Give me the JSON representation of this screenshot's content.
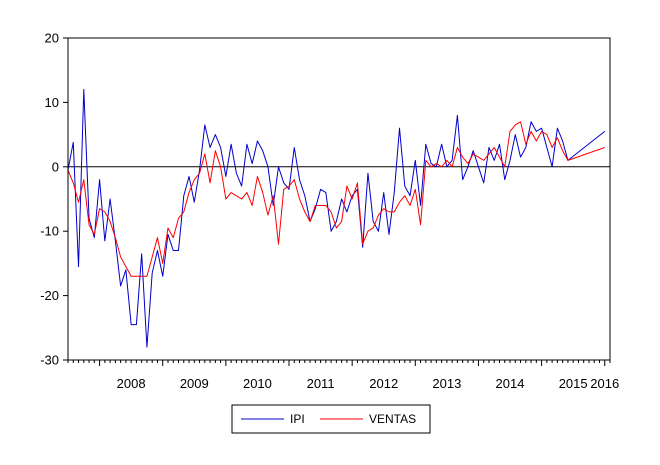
{
  "chart_data": {
    "type": "line",
    "title": "",
    "xlabel": "",
    "ylabel": "",
    "ylim": [
      -30,
      20
    ],
    "yticks": [
      -30,
      -20,
      -10,
      0,
      10,
      20
    ],
    "x_start": "2007-07",
    "x_end": "2016-02",
    "xticks": [
      "2008",
      "2009",
      "2010",
      "2011",
      "2012",
      "2013",
      "2014",
      "2015",
      "2016"
    ],
    "reference_line": 0,
    "grid": false,
    "legend": {
      "position": "bottom-center",
      "entries": [
        "IPI",
        "VENTAS"
      ]
    },
    "series": [
      {
        "name": "IPI",
        "color": "#0000cc",
        "values": [
          {
            "x": "2007-07",
            "y": -0.5
          },
          {
            "x": "2007-08",
            "y": 3.8
          },
          {
            "x": "2007-09",
            "y": -15.5
          },
          {
            "x": "2007-10",
            "y": 12.0
          },
          {
            "x": "2007-11",
            "y": -8.0
          },
          {
            "x": "2007-12",
            "y": -11.0
          },
          {
            "x": "2008-01",
            "y": -2.0
          },
          {
            "x": "2008-02",
            "y": -11.5
          },
          {
            "x": "2008-03",
            "y": -5.0
          },
          {
            "x": "2008-04",
            "y": -11.5
          },
          {
            "x": "2008-05",
            "y": -18.5
          },
          {
            "x": "2008-06",
            "y": -16.0
          },
          {
            "x": "2008-07",
            "y": -24.5
          },
          {
            "x": "2008-08",
            "y": -24.5
          },
          {
            "x": "2008-09",
            "y": -13.5
          },
          {
            "x": "2008-10",
            "y": -28.0
          },
          {
            "x": "2008-11",
            "y": -16.5
          },
          {
            "x": "2008-12",
            "y": -13.0
          },
          {
            "x": "2009-01",
            "y": -17.0
          },
          {
            "x": "2009-02",
            "y": -10.5
          },
          {
            "x": "2009-03",
            "y": -13.0
          },
          {
            "x": "2009-04",
            "y": -13.0
          },
          {
            "x": "2009-05",
            "y": -4.5
          },
          {
            "x": "2009-06",
            "y": -1.5
          },
          {
            "x": "2009-07",
            "y": -5.5
          },
          {
            "x": "2009-08",
            "y": -0.5
          },
          {
            "x": "2009-09",
            "y": 6.5
          },
          {
            "x": "2009-10",
            "y": 3.0
          },
          {
            "x": "2009-11",
            "y": 5.0
          },
          {
            "x": "2009-12",
            "y": 3.0
          },
          {
            "x": "2010-01",
            "y": -1.5
          },
          {
            "x": "2010-02",
            "y": 3.5
          },
          {
            "x": "2010-03",
            "y": -1.0
          },
          {
            "x": "2010-04",
            "y": -3.0
          },
          {
            "x": "2010-05",
            "y": 3.5
          },
          {
            "x": "2010-06",
            "y": 0.5
          },
          {
            "x": "2010-07",
            "y": 4.0
          },
          {
            "x": "2010-08",
            "y": 2.5
          },
          {
            "x": "2010-09",
            "y": 0.0
          },
          {
            "x": "2010-10",
            "y": -6.0
          },
          {
            "x": "2010-11",
            "y": 0.0
          },
          {
            "x": "2010-12",
            "y": -2.5
          },
          {
            "x": "2011-01",
            "y": -3.5
          },
          {
            "x": "2011-02",
            "y": 3.0
          },
          {
            "x": "2011-03",
            "y": -2.0
          },
          {
            "x": "2011-04",
            "y": -4.5
          },
          {
            "x": "2011-05",
            "y": -8.5
          },
          {
            "x": "2011-06",
            "y": -6.5
          },
          {
            "x": "2011-07",
            "y": -3.5
          },
          {
            "x": "2011-08",
            "y": -4.0
          },
          {
            "x": "2011-09",
            "y": -10.0
          },
          {
            "x": "2011-10",
            "y": -8.5
          },
          {
            "x": "2011-11",
            "y": -5.0
          },
          {
            "x": "2011-12",
            "y": -7.0
          },
          {
            "x": "2012-01",
            "y": -4.5
          },
          {
            "x": "2012-02",
            "y": -3.5
          },
          {
            "x": "2012-03",
            "y": -12.5
          },
          {
            "x": "2012-04",
            "y": -1.0
          },
          {
            "x": "2012-05",
            "y": -8.5
          },
          {
            "x": "2012-06",
            "y": -10.0
          },
          {
            "x": "2012-07",
            "y": -4.0
          },
          {
            "x": "2012-08",
            "y": -10.5
          },
          {
            "x": "2012-09",
            "y": -4.0
          },
          {
            "x": "2012-10",
            "y": 6.0
          },
          {
            "x": "2012-11",
            "y": -3.0
          },
          {
            "x": "2012-12",
            "y": -4.5
          },
          {
            "x": "2013-01",
            "y": 1.0
          },
          {
            "x": "2013-02",
            "y": -6.0
          },
          {
            "x": "2013-03",
            "y": 3.5
          },
          {
            "x": "2013-04",
            "y": 0.5
          },
          {
            "x": "2013-05",
            "y": 0.0
          },
          {
            "x": "2013-06",
            "y": 3.5
          },
          {
            "x": "2013-07",
            "y": 0.0
          },
          {
            "x": "2013-08",
            "y": 1.0
          },
          {
            "x": "2013-09",
            "y": 8.0
          },
          {
            "x": "2013-10",
            "y": -2.0
          },
          {
            "x": "2013-11",
            "y": 0.0
          },
          {
            "x": "2013-12",
            "y": 2.5
          },
          {
            "x": "2014-01",
            "y": 0.0
          },
          {
            "x": "2014-02",
            "y": -2.5
          },
          {
            "x": "2014-03",
            "y": 3.0
          },
          {
            "x": "2014-04",
            "y": 1.0
          },
          {
            "x": "2014-05",
            "y": 3.5
          },
          {
            "x": "2014-06",
            "y": -2.0
          },
          {
            "x": "2014-07",
            "y": 1.0
          },
          {
            "x": "2014-08",
            "y": 5.0
          },
          {
            "x": "2014-09",
            "y": 1.5
          },
          {
            "x": "2014-10",
            "y": 3.0
          },
          {
            "x": "2014-11",
            "y": 7.0
          },
          {
            "x": "2014-12",
            "y": 5.5
          },
          {
            "x": "2015-01",
            "y": 6.0
          },
          {
            "x": "2015-02",
            "y": 3.0
          },
          {
            "x": "2015-03",
            "y": 0.0
          },
          {
            "x": "2015-04",
            "y": 6.0
          },
          {
            "x": "2015-05",
            "y": 4.0
          },
          {
            "x": "2015-06",
            "y": 1.0
          },
          {
            "x": "2016-01",
            "y": 5.5
          }
        ]
      },
      {
        "name": "VENTAS",
        "color": "#ff0000",
        "values": [
          {
            "x": "2007-07",
            "y": -0.5
          },
          {
            "x": "2007-08",
            "y": -2.5
          },
          {
            "x": "2007-09",
            "y": -5.5
          },
          {
            "x": "2007-10",
            "y": -2.0
          },
          {
            "x": "2007-11",
            "y": -9.0
          },
          {
            "x": "2007-12",
            "y": -10.5
          },
          {
            "x": "2008-01",
            "y": -6.5
          },
          {
            "x": "2008-02",
            "y": -7.0
          },
          {
            "x": "2008-03",
            "y": -8.5
          },
          {
            "x": "2008-04",
            "y": -11.0
          },
          {
            "x": "2008-05",
            "y": -14.0
          },
          {
            "x": "2008-06",
            "y": -15.5
          },
          {
            "x": "2008-07",
            "y": -17.0
          },
          {
            "x": "2008-08",
            "y": -17.0
          },
          {
            "x": "2008-09",
            "y": -17.0
          },
          {
            "x": "2008-10",
            "y": -17.0
          },
          {
            "x": "2008-11",
            "y": -14.0
          },
          {
            "x": "2008-12",
            "y": -11.0
          },
          {
            "x": "2009-01",
            "y": -15.0
          },
          {
            "x": "2009-02",
            "y": -9.5
          },
          {
            "x": "2009-03",
            "y": -11.0
          },
          {
            "x": "2009-04",
            "y": -8.0
          },
          {
            "x": "2009-05",
            "y": -7.0
          },
          {
            "x": "2009-06",
            "y": -4.0
          },
          {
            "x": "2009-07",
            "y": -2.0
          },
          {
            "x": "2009-08",
            "y": -1.0
          },
          {
            "x": "2009-09",
            "y": 2.0
          },
          {
            "x": "2009-10",
            "y": -2.5
          },
          {
            "x": "2009-11",
            "y": 2.5
          },
          {
            "x": "2009-12",
            "y": 0.0
          },
          {
            "x": "2010-01",
            "y": -5.0
          },
          {
            "x": "2010-02",
            "y": -4.0
          },
          {
            "x": "2010-03",
            "y": -4.5
          },
          {
            "x": "2010-04",
            "y": -5.0
          },
          {
            "x": "2010-05",
            "y": -4.0
          },
          {
            "x": "2010-06",
            "y": -6.0
          },
          {
            "x": "2010-07",
            "y": -1.5
          },
          {
            "x": "2010-08",
            "y": -4.0
          },
          {
            "x": "2010-09",
            "y": -7.5
          },
          {
            "x": "2010-10",
            "y": -4.5
          },
          {
            "x": "2010-11",
            "y": -12.0
          },
          {
            "x": "2010-12",
            "y": -3.5
          },
          {
            "x": "2011-01",
            "y": -3.0
          },
          {
            "x": "2011-02",
            "y": -2.0
          },
          {
            "x": "2011-03",
            "y": -5.0
          },
          {
            "x": "2011-04",
            "y": -7.0
          },
          {
            "x": "2011-05",
            "y": -8.5
          },
          {
            "x": "2011-06",
            "y": -6.0
          },
          {
            "x": "2011-07",
            "y": -6.0
          },
          {
            "x": "2011-08",
            "y": -6.0
          },
          {
            "x": "2011-09",
            "y": -7.0
          },
          {
            "x": "2011-10",
            "y": -9.5
          },
          {
            "x": "2011-11",
            "y": -8.5
          },
          {
            "x": "2011-12",
            "y": -3.0
          },
          {
            "x": "2012-01",
            "y": -5.0
          },
          {
            "x": "2012-02",
            "y": -2.5
          },
          {
            "x": "2012-03",
            "y": -12.0
          },
          {
            "x": "2012-04",
            "y": -10.0
          },
          {
            "x": "2012-05",
            "y": -9.5
          },
          {
            "x": "2012-06",
            "y": -7.5
          },
          {
            "x": "2012-07",
            "y": -6.5
          },
          {
            "x": "2012-08",
            "y": -7.0
          },
          {
            "x": "2012-09",
            "y": -7.0
          },
          {
            "x": "2012-10",
            "y": -5.5
          },
          {
            "x": "2012-11",
            "y": -4.5
          },
          {
            "x": "2012-12",
            "y": -6.0
          },
          {
            "x": "2013-01",
            "y": -3.5
          },
          {
            "x": "2013-02",
            "y": -9.0
          },
          {
            "x": "2013-03",
            "y": 1.0
          },
          {
            "x": "2013-04",
            "y": 0.0
          },
          {
            "x": "2013-05",
            "y": 0.5
          },
          {
            "x": "2013-06",
            "y": 0.0
          },
          {
            "x": "2013-07",
            "y": 1.0
          },
          {
            "x": "2013-08",
            "y": 0.0
          },
          {
            "x": "2013-09",
            "y": 3.0
          },
          {
            "x": "2013-10",
            "y": 1.5
          },
          {
            "x": "2013-11",
            "y": 0.5
          },
          {
            "x": "2013-12",
            "y": 2.0
          },
          {
            "x": "2014-01",
            "y": 1.5
          },
          {
            "x": "2014-02",
            "y": 1.0
          },
          {
            "x": "2014-03",
            "y": 2.0
          },
          {
            "x": "2014-04",
            "y": 3.0
          },
          {
            "x": "2014-05",
            "y": 1.5
          },
          {
            "x": "2014-06",
            "y": 0.0
          },
          {
            "x": "2014-07",
            "y": 5.5
          },
          {
            "x": "2014-08",
            "y": 6.5
          },
          {
            "x": "2014-09",
            "y": 7.0
          },
          {
            "x": "2014-10",
            "y": 3.5
          },
          {
            "x": "2014-11",
            "y": 5.5
          },
          {
            "x": "2014-12",
            "y": 4.0
          },
          {
            "x": "2015-01",
            "y": 5.5
          },
          {
            "x": "2015-02",
            "y": 5.0
          },
          {
            "x": "2015-03",
            "y": 3.0
          },
          {
            "x": "2015-04",
            "y": 4.5
          },
          {
            "x": "2015-05",
            "y": 2.5
          },
          {
            "x": "2015-06",
            "y": 1.0
          },
          {
            "x": "2016-01",
            "y": 3.0
          }
        ]
      }
    ]
  }
}
